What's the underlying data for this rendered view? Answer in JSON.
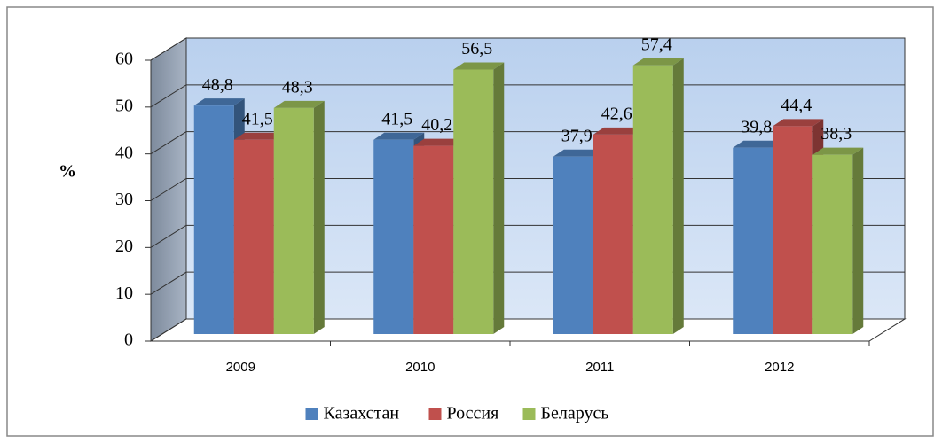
{
  "chart_data": {
    "type": "bar3d",
    "y_label": "%",
    "categories": [
      "2009",
      "2010",
      "2011",
      "2012"
    ],
    "series": [
      {
        "name": "Казахстан",
        "color": "#4f81bd",
        "values": [
          48.8,
          41.5,
          37.9,
          39.8
        ],
        "value_labels": [
          "48,8",
          "41,5",
          "37,9",
          "39,8"
        ]
      },
      {
        "name": "Россия",
        "color": "#c0504d",
        "values": [
          41.5,
          40.2,
          42.6,
          44.4
        ],
        "value_labels": [
          "41,5",
          "40,2",
          "42,6",
          "44,4"
        ]
      },
      {
        "name": "Беларусь",
        "color": "#9bbb59",
        "values": [
          48.3,
          56.5,
          57.4,
          38.3
        ],
        "value_labels": [
          "48,3",
          "56,5",
          "57,4",
          "38,3"
        ]
      }
    ],
    "ylim": [
      0,
      60
    ],
    "yticks": [
      0,
      10,
      20,
      30,
      40,
      50,
      60
    ],
    "grid": true,
    "legend": "bottom"
  }
}
